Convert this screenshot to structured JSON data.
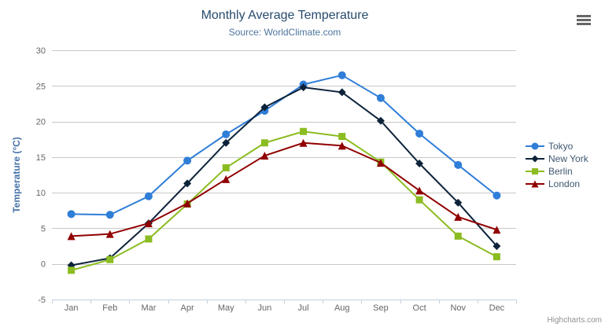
{
  "header": {
    "title": "Monthly Average Temperature",
    "subtitle": "Source: WorldClimate.com"
  },
  "icons": {
    "export_menu": "hamburger-menu-icon"
  },
  "chart_data": {
    "type": "line",
    "title": "Monthly Average Temperature",
    "subtitle": "Source: WorldClimate.com",
    "categories": [
      "Jan",
      "Feb",
      "Mar",
      "Apr",
      "May",
      "Jun",
      "Jul",
      "Aug",
      "Sep",
      "Oct",
      "Nov",
      "Dec"
    ],
    "xlabel": "",
    "ylabel": "Temperature (°C)",
    "ylim": [
      -5,
      30
    ],
    "ytick_interval": 5,
    "grid": "horizontal",
    "legend_position": "right",
    "series": [
      {
        "name": "Tokyo",
        "color": "#2f7ed8",
        "marker": "circle",
        "values": [
          7.0,
          6.9,
          9.5,
          14.5,
          18.2,
          21.5,
          25.2,
          26.5,
          23.3,
          18.3,
          13.9,
          9.6
        ]
      },
      {
        "name": "New York",
        "color": "#0d233a",
        "marker": "diamond",
        "values": [
          -0.2,
          0.8,
          5.7,
          11.3,
          17.0,
          22.0,
          24.8,
          24.1,
          20.1,
          14.1,
          8.6,
          2.5
        ]
      },
      {
        "name": "Berlin",
        "color": "#8bbc21",
        "marker": "square",
        "values": [
          -0.9,
          0.6,
          3.5,
          8.4,
          13.5,
          17.0,
          18.6,
          17.9,
          14.3,
          9.0,
          3.9,
          1.0
        ]
      },
      {
        "name": "London",
        "color": "#910000",
        "marker": "triangle",
        "values": [
          3.9,
          4.2,
          5.7,
          8.5,
          11.9,
          15.2,
          17.0,
          16.6,
          14.2,
          10.3,
          6.6,
          4.8
        ]
      }
    ]
  },
  "credits": {
    "label": "Highcharts.com"
  },
  "colors": {
    "title": "#274b6d",
    "subtitle": "#4d759e",
    "axis_title": "#4572a7",
    "axis_labels": "#666666",
    "grid": "#c8c8c8",
    "axis_line": "#c0d0e0",
    "legend_text": "#3e576f",
    "credit": "#909090"
  }
}
